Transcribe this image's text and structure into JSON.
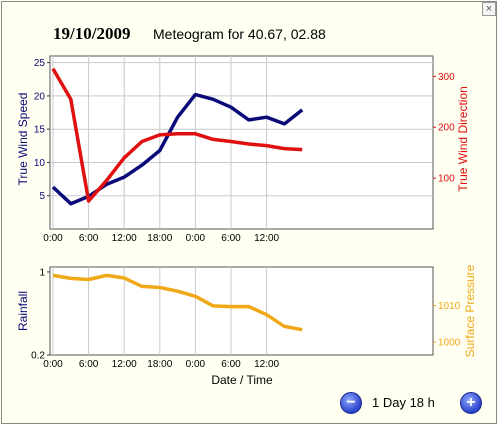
{
  "window": {
    "close_label": "×"
  },
  "header": {
    "date": "19/10/2009",
    "title": "Meteogram for 40.67, 02.88"
  },
  "controls": {
    "zoom_out_icon": "minus-icon",
    "zoom_in_icon": "plus-icon",
    "zoom_out_label": "−",
    "zoom_in_label": "+",
    "duration": "1 Day 18 h"
  },
  "colors": {
    "wind_speed": "#0a0a78",
    "wind_direction": "#e01010",
    "pressure": "#f0a818",
    "grid": "#c9c9c9",
    "background": "#fffff2"
  },
  "chart_data": [
    {
      "type": "line",
      "x": [
        "00:00",
        "03:00",
        "06:00",
        "09:00",
        "12:00",
        "15:00",
        "18:00",
        "21:00",
        "00:00",
        "03:00",
        "06:00",
        "09:00",
        "12:00",
        "15:00",
        "18:00"
      ],
      "x_tick_labels": [
        "0:00",
        "6:00",
        "12:00",
        "18:00",
        "0:00",
        "6:00",
        "12:00"
      ],
      "grid": true,
      "y_left": {
        "label": "True Wind Speed",
        "ylim": [
          0,
          26
        ],
        "ticks": [
          5,
          10,
          15,
          20,
          25
        ]
      },
      "y_right": {
        "label": "True Wind Direction",
        "ylim": [
          0,
          340
        ],
        "ticks": [
          100,
          200,
          300
        ]
      },
      "series": [
        {
          "axis": "left",
          "values": [
            6.3,
            3.8,
            4.9,
            6.7,
            7.8,
            9.6,
            11.8,
            16.8,
            20.2,
            19.5,
            18.3,
            16.4,
            16.8,
            15.8,
            17.9
          ]
        },
        {
          "axis": "right",
          "values": [
            315,
            255,
            55,
            95,
            140,
            172,
            185,
            187,
            187,
            176,
            172,
            167,
            164,
            158,
            156
          ]
        }
      ]
    },
    {
      "type": "line",
      "x": [
        "00:00",
        "03:00",
        "06:00",
        "09:00",
        "12:00",
        "15:00",
        "18:00",
        "21:00",
        "00:00",
        "03:00",
        "06:00",
        "09:00",
        "12:00",
        "15:00",
        "18:00"
      ],
      "x_tick_labels": [
        "0:00",
        "6:00",
        "12:00",
        "18:00",
        "0:00",
        "6:00",
        "12:00"
      ],
      "xlabel": "Date / Time",
      "grid": true,
      "y_left": {
        "label": "Rainfall",
        "scale": "log",
        "ylim": [
          0.2,
          1.1
        ],
        "ticks": [
          0.2,
          1
        ]
      },
      "y_right": {
        "label": "Surface Pressure",
        "ylim": [
          996.5,
          1020.5
        ],
        "ticks": [
          1000,
          1010
        ]
      },
      "series": [
        {
          "axis": "right",
          "values": [
            1018.2,
            1017.4,
            1017.1,
            1018.2,
            1017.5,
            1015.2,
            1014.9,
            1013.9,
            1012.5,
            1009.9,
            1009.7,
            1009.7,
            1007.5,
            1004.3,
            1003.4
          ]
        }
      ]
    }
  ]
}
